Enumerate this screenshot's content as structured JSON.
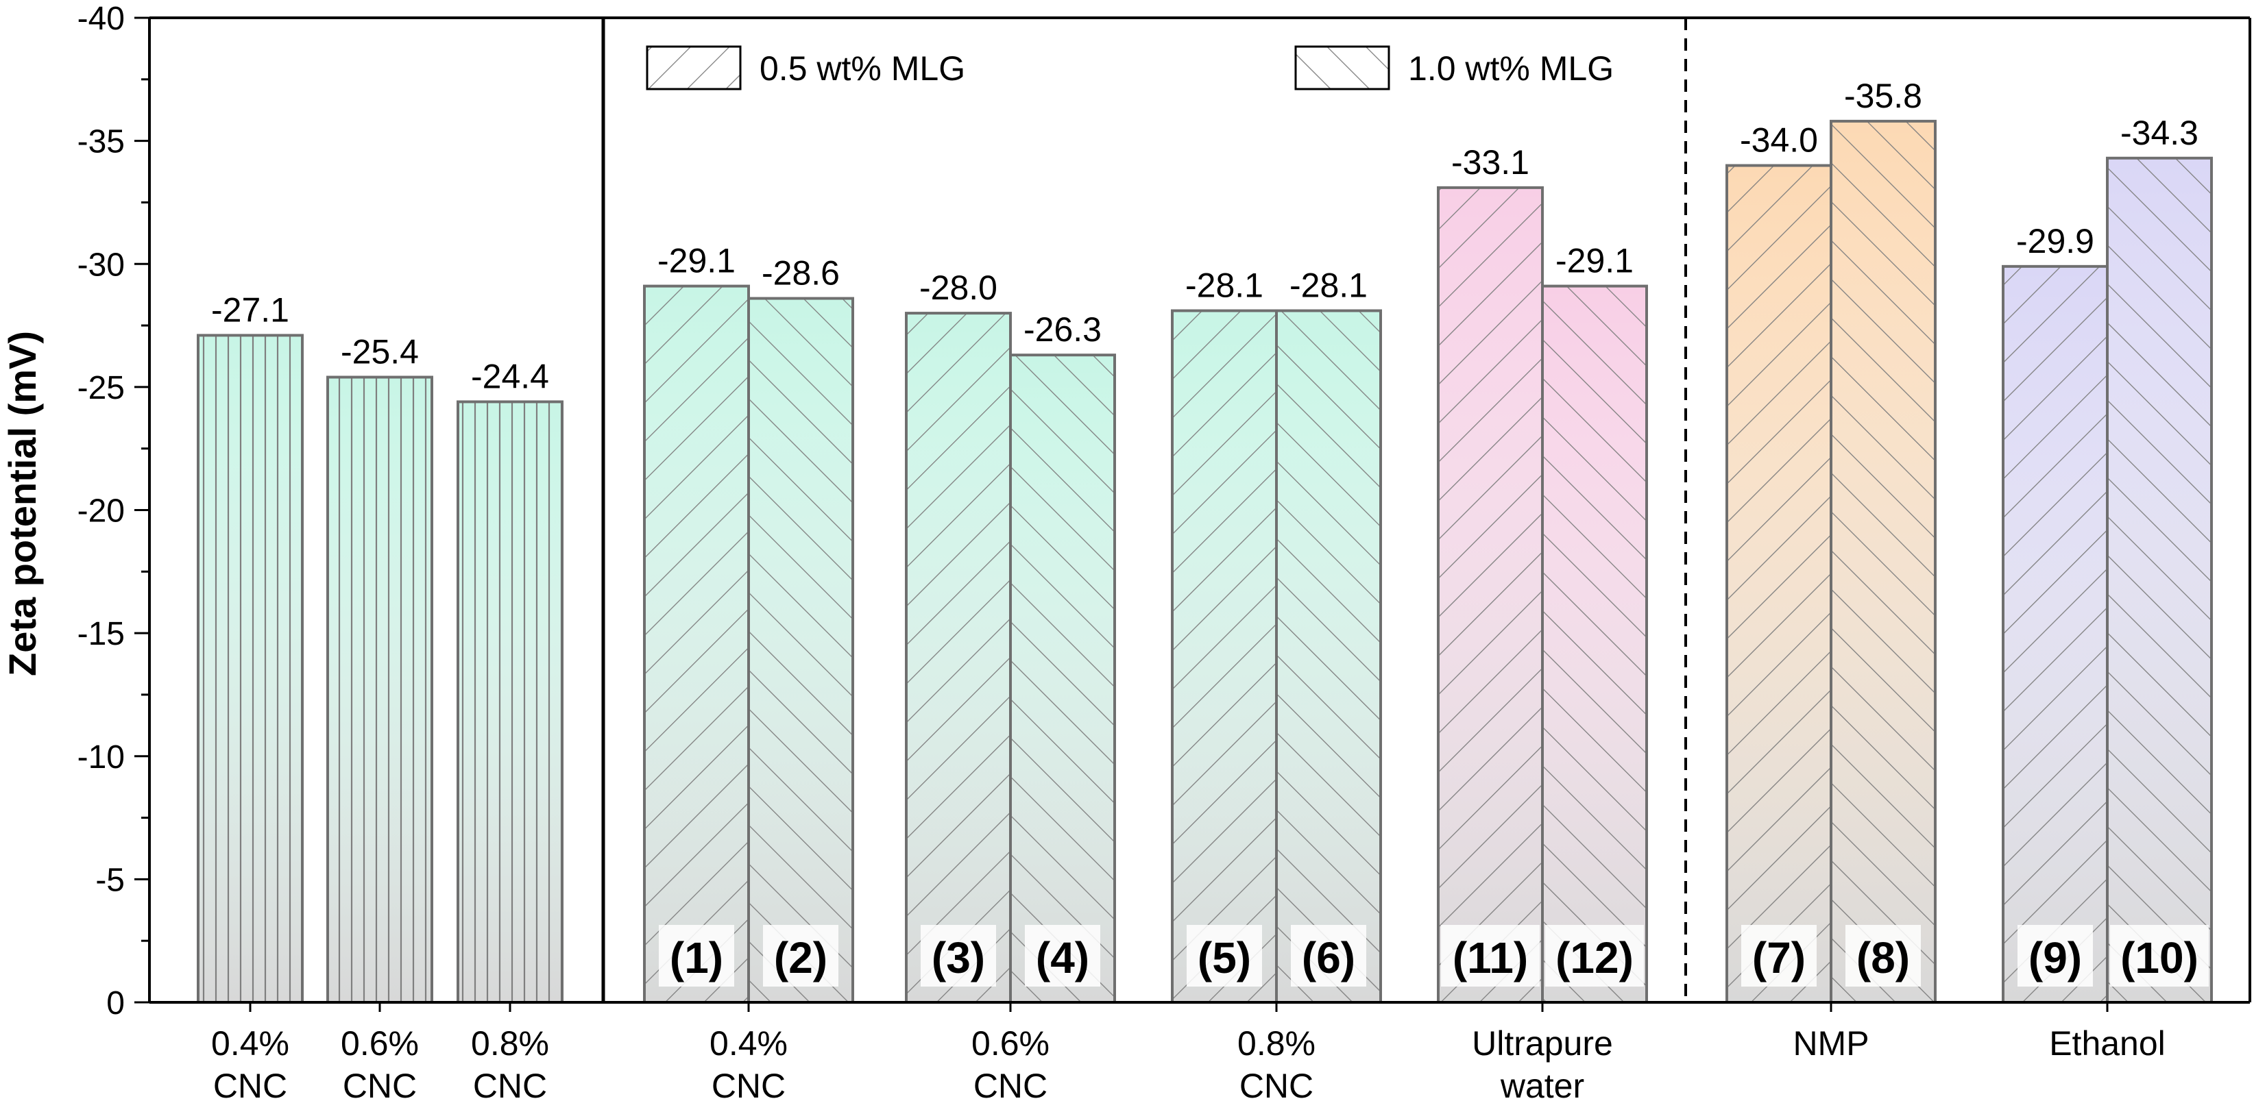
{
  "chart_data": {
    "type": "bar",
    "ylabel": "Zeta potential (mV)",
    "ylim": [
      0,
      -40
    ],
    "y_axis_inverted": true,
    "yticks": [
      "0",
      "-5",
      "-10",
      "-15",
      "-20",
      "-25",
      "-30",
      "-35",
      "-40"
    ],
    "yticks_values": [
      0,
      -5,
      -10,
      -15,
      -20,
      -25,
      -30,
      -35,
      -40
    ],
    "grid": false,
    "legend": {
      "placement": "top",
      "entries": [
        {
          "label": "0.5 wt% MLG",
          "pattern": "diagonal-forward"
        },
        {
          "label": "1.0 wt% MLG",
          "pattern": "diagonal-backward"
        }
      ]
    },
    "groups": [
      {
        "label": [
          "0.4%",
          "CNC"
        ],
        "bars": [
          {
            "value": -27.1,
            "value_label": "-27.1",
            "pattern": "vertical",
            "tint": "#c8f5e6"
          }
        ]
      },
      {
        "label": [
          "0.6%",
          "CNC"
        ],
        "bars": [
          {
            "value": -25.4,
            "value_label": "-25.4",
            "pattern": "vertical",
            "tint": "#c8f5e6"
          }
        ]
      },
      {
        "label": [
          "0.8%",
          "CNC"
        ],
        "bars": [
          {
            "value": -24.4,
            "value_label": "-24.4",
            "pattern": "vertical",
            "tint": "#c8f5e6"
          }
        ]
      },
      {
        "label": [
          "0.4%",
          "CNC"
        ],
        "bars": [
          {
            "value": -29.1,
            "value_label": "-29.1",
            "pattern": "diagonal-forward",
            "tint": "#c8f5e6",
            "id_label": "(1)"
          },
          {
            "value": -28.6,
            "value_label": "-28.6",
            "pattern": "diagonal-backward",
            "tint": "#c8f5e6",
            "id_label": "(2)"
          }
        ]
      },
      {
        "label": [
          "0.6%",
          "CNC"
        ],
        "bars": [
          {
            "value": -28.0,
            "value_label": "-28.0",
            "pattern": "diagonal-forward",
            "tint": "#c8f5e6",
            "id_label": "(3)"
          },
          {
            "value": -26.3,
            "value_label": "-26.3",
            "pattern": "diagonal-backward",
            "tint": "#c8f5e6",
            "id_label": "(4)"
          }
        ]
      },
      {
        "label": [
          "0.8%",
          "CNC"
        ],
        "bars": [
          {
            "value": -28.1,
            "value_label": "-28.1",
            "pattern": "diagonal-forward",
            "tint": "#c8f5e6",
            "id_label": "(5)"
          },
          {
            "value": -28.1,
            "value_label": "-28.1",
            "pattern": "diagonal-backward",
            "tint": "#c8f5e6",
            "id_label": "(6)"
          }
        ]
      },
      {
        "label": [
          "Ultrapure",
          "water"
        ],
        "bars": [
          {
            "value": -33.1,
            "value_label": "-33.1",
            "pattern": "diagonal-forward",
            "tint": "#f8cfe6",
            "id_label": "(11)"
          },
          {
            "value": -29.1,
            "value_label": "-29.1",
            "pattern": "diagonal-backward",
            "tint": "#f8cfe6",
            "id_label": "(12)"
          }
        ]
      },
      {
        "label": [
          "NMP"
        ],
        "bars": [
          {
            "value": -34.0,
            "value_label": "-34.0",
            "pattern": "diagonal-forward",
            "tint": "#fcd9b4",
            "id_label": "(7)"
          },
          {
            "value": -35.8,
            "value_label": "-35.8",
            "pattern": "diagonal-backward",
            "tint": "#fcd9b4",
            "id_label": "(8)"
          }
        ]
      },
      {
        "label": [
          "Ethanol"
        ],
        "bars": [
          {
            "value": -29.9,
            "value_label": "-29.9",
            "pattern": "diagonal-forward",
            "tint": "#dad7f6",
            "id_label": "(9)"
          },
          {
            "value": -34.3,
            "value_label": "-34.3",
            "pattern": "diagonal-backward",
            "tint": "#dad7f6",
            "id_label": "(10)"
          }
        ]
      }
    ],
    "separators": [
      {
        "after_group": 2,
        "style": "solid"
      },
      {
        "after_group": 6,
        "style": "dashed"
      }
    ]
  }
}
